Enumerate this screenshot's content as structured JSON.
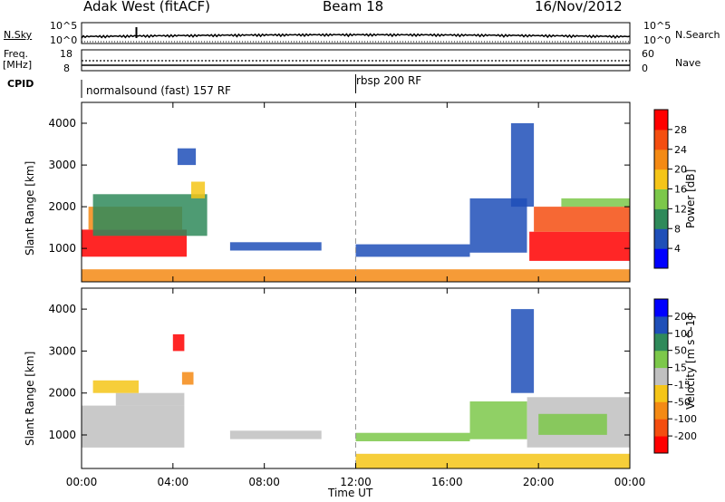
{
  "header": {
    "station": "Adak West (fitACF)",
    "beam": "Beam 18",
    "date": "16/Nov/2012"
  },
  "strip_panels": {
    "nsky_label": "N.Sky",
    "nsearch_label": "N.Search",
    "freq_label_1": "Freq.",
    "freq_label_2": "[MHz]",
    "nave_label": "Nave",
    "cpid_label": "CPID",
    "left_ticks_top": [
      "10^5",
      "10^0"
    ],
    "right_ticks_top": [
      "10^5",
      "10^0"
    ],
    "freq_ticks": [
      "18",
      "8"
    ],
    "nave_ticks": [
      "60",
      "0"
    ],
    "cpid_segments": [
      {
        "label": "normalsound (fast) 157 RF",
        "start_hour": 0
      },
      {
        "label": "rbsp 200 RF",
        "start_hour": 12
      }
    ]
  },
  "chart_data": [
    {
      "type": "heatmap",
      "title": "Power",
      "xlabel": "Time UT",
      "ylabel": "Slant Range [km]",
      "x_tick_labels": [
        "00:00",
        "04:00",
        "08:00",
        "12:00",
        "16:00",
        "20:00",
        "00:00"
      ],
      "x_ticks_hours": [
        0,
        4,
        8,
        12,
        16,
        20,
        24
      ],
      "xlim_hours": [
        0,
        24
      ],
      "ylim": [
        200,
        4500
      ],
      "y_ticks": [
        1000,
        2000,
        3000,
        4000
      ],
      "colorbar": {
        "label": "Power [dB]",
        "tick_labels": [
          "4",
          "8",
          "12",
          "16",
          "20",
          "24",
          "28"
        ],
        "colors": [
          "#0000ff",
          "#1f4fb8",
          "#2f8a5a",
          "#7cc84a",
          "#f5c518",
          "#f48a14",
          "#f44e10",
          "#ff0000"
        ],
        "range": [
          0,
          32
        ]
      },
      "regions": [
        {
          "t0": 0.0,
          "t1": 4.6,
          "r0": 800,
          "r1": 1450,
          "color": "#ff0000"
        },
        {
          "t0": 0.3,
          "t1": 4.4,
          "r0": 1450,
          "r1": 2000,
          "color": "#f48a14"
        },
        {
          "t0": 0.5,
          "t1": 5.5,
          "r0": 1300,
          "r1": 2300,
          "color": "#2f8a5a"
        },
        {
          "t0": 4.2,
          "t1": 5.0,
          "r0": 3000,
          "r1": 3400,
          "color": "#1f4fb8"
        },
        {
          "t0": 4.8,
          "t1": 5.4,
          "r0": 2200,
          "r1": 2600,
          "color": "#f5c518"
        },
        {
          "t0": 6.5,
          "t1": 10.5,
          "r0": 950,
          "r1": 1150,
          "color": "#1f4fb8"
        },
        {
          "t0": 12.0,
          "t1": 17.0,
          "r0": 800,
          "r1": 1100,
          "color": "#1f4fb8"
        },
        {
          "t0": 17.0,
          "t1": 19.5,
          "r0": 900,
          "r1": 2200,
          "color": "#1f4fb8"
        },
        {
          "t0": 18.8,
          "t1": 19.8,
          "r0": 2000,
          "r1": 4000,
          "color": "#1f4fb8"
        },
        {
          "t0": 19.6,
          "t1": 24.0,
          "r0": 700,
          "r1": 1400,
          "color": "#ff0000"
        },
        {
          "t0": 19.8,
          "t1": 24.0,
          "r0": 1400,
          "r1": 2000,
          "color": "#f44e10"
        },
        {
          "t0": 21.0,
          "t1": 24.0,
          "r0": 2000,
          "r1": 2200,
          "color": "#7cc84a"
        },
        {
          "t0": 0.0,
          "t1": 24.0,
          "r0": 200,
          "r1": 500,
          "color": "#f48a14"
        }
      ]
    },
    {
      "type": "heatmap",
      "title": "Velocity",
      "xlabel": "Time UT",
      "ylabel": "Slant Range [km]",
      "x_tick_labels": [
        "00:00",
        "04:00",
        "08:00",
        "12:00",
        "16:00",
        "20:00",
        "00:00"
      ],
      "x_ticks_hours": [
        0,
        4,
        8,
        12,
        16,
        20,
        24
      ],
      "xlim_hours": [
        0,
        24
      ],
      "ylim": [
        200,
        4500
      ],
      "y_ticks": [
        1000,
        2000,
        3000,
        4000
      ],
      "colorbar": {
        "label": "Velocity [m s^-1]",
        "tick_labels": [
          "200",
          "100",
          "50",
          "15",
          "-15",
          "-50",
          "-100",
          "-200"
        ],
        "colors": [
          "#0000ff",
          "#1f4fb8",
          "#2f8a5a",
          "#7cc84a",
          "#c0c0c0",
          "#f5c518",
          "#f48a14",
          "#f44e10",
          "#ff0000"
        ],
        "range": [
          0,
          9
        ]
      },
      "regions": [
        {
          "t0": 0.0,
          "t1": 4.5,
          "r0": 700,
          "r1": 1700,
          "color": "#c0c0c0"
        },
        {
          "t0": 1.5,
          "t1": 4.5,
          "r0": 1700,
          "r1": 2000,
          "color": "#c0c0c0"
        },
        {
          "t0": 0.5,
          "t1": 2.5,
          "r0": 2000,
          "r1": 2300,
          "color": "#f5c518"
        },
        {
          "t0": 4.0,
          "t1": 4.5,
          "r0": 3000,
          "r1": 3400,
          "color": "#ff0000"
        },
        {
          "t0": 4.4,
          "t1": 4.9,
          "r0": 2200,
          "r1": 2500,
          "color": "#f48a14"
        },
        {
          "t0": 6.5,
          "t1": 10.5,
          "r0": 900,
          "r1": 1100,
          "color": "#c0c0c0"
        },
        {
          "t0": 12.0,
          "t1": 17.0,
          "r0": 850,
          "r1": 1050,
          "color": "#7cc84a"
        },
        {
          "t0": 17.0,
          "t1": 19.5,
          "r0": 900,
          "r1": 1800,
          "color": "#7cc84a"
        },
        {
          "t0": 18.8,
          "t1": 19.8,
          "r0": 2000,
          "r1": 4000,
          "color": "#1f4fb8"
        },
        {
          "t0": 19.5,
          "t1": 24.0,
          "r0": 700,
          "r1": 1900,
          "color": "#c0c0c0"
        },
        {
          "t0": 20.0,
          "t1": 23.0,
          "r0": 1000,
          "r1": 1500,
          "color": "#7cc84a"
        },
        {
          "t0": 12.0,
          "t1": 24.0,
          "r0": 200,
          "r1": 550,
          "color": "#f5c518"
        }
      ]
    }
  ]
}
